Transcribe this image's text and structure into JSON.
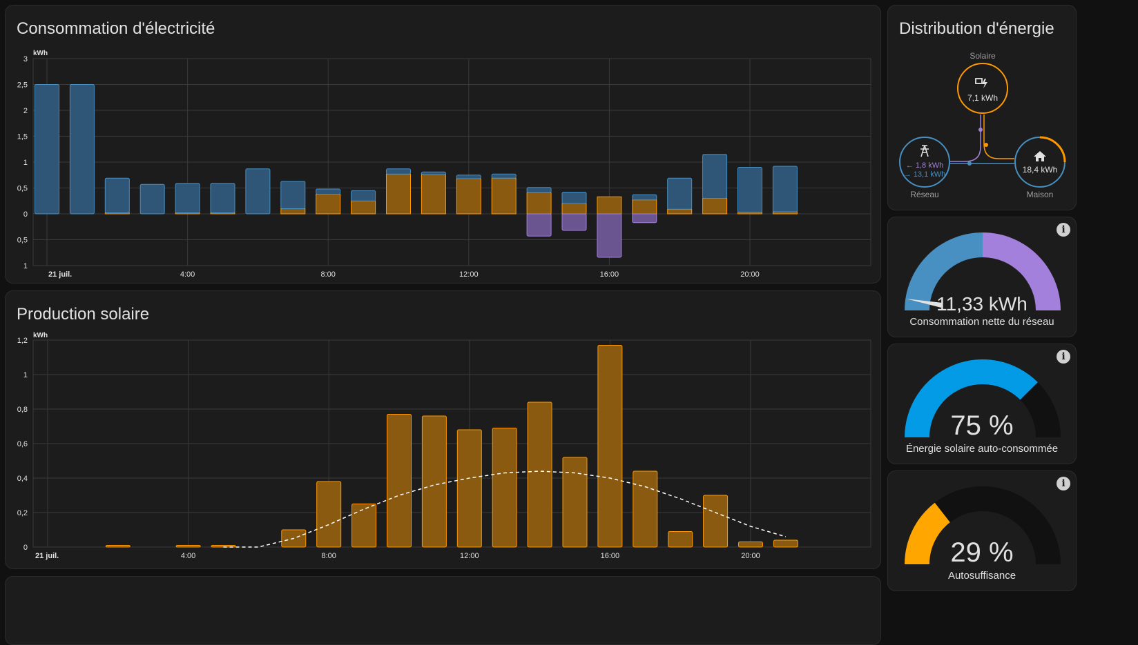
{
  "consumption": {
    "title": "Consommation d'électricité",
    "unit": "kWh",
    "yticks_pos": [
      "3",
      "2,5",
      "2",
      "1,5",
      "1",
      "0,5",
      "0"
    ],
    "yticks_neg": [
      "0,5",
      "1"
    ],
    "xticks": [
      "21 juil.",
      "4:00",
      "8:00",
      "12:00",
      "16:00",
      "20:00"
    ]
  },
  "solar": {
    "title": "Production solaire",
    "unit": "kWh",
    "yticks": [
      "1,2",
      "1",
      "0,8",
      "0,6",
      "0,4",
      "0,2",
      "0"
    ],
    "xticks": [
      "21 juil.",
      "4:00",
      "8:00",
      "12:00",
      "16:00",
      "20:00"
    ]
  },
  "distribution": {
    "title": "Distribution d'énergie",
    "solar_label": "Solaire",
    "solar_value": "7,1 kWh",
    "grid_label": "Réseau",
    "grid_out": "← 1,8 kWh",
    "grid_in": "→ 13,1 kWh",
    "home_label": "Maison",
    "home_value": "18,4 kWh"
  },
  "gauge_net": {
    "value": "11,33 kWh",
    "label": "Consommation nette du réseau"
  },
  "gauge_self": {
    "value": "75 %",
    "label": "Énergie solaire auto-consommée",
    "fraction": 0.75
  },
  "gauge_auto": {
    "value": "29 %",
    "label": "Autosuffisance",
    "fraction": 0.29
  },
  "colors": {
    "grid": "#488fc2",
    "solar": "#ff9800",
    "return": "#a280db",
    "gauge_blue": "#039be5",
    "gauge_orange": "#ffa600"
  },
  "chart_data": [
    {
      "type": "bar",
      "title": "Consommation d'électricité",
      "ylabel": "kWh",
      "ylim": [
        -1,
        3
      ],
      "hours": [
        0,
        1,
        2,
        3,
        4,
        5,
        6,
        7,
        8,
        9,
        10,
        11,
        12,
        13,
        14,
        15,
        16,
        17,
        18,
        19,
        20,
        21
      ],
      "series": [
        {
          "name": "grid",
          "values": [
            2.5,
            2.5,
            0.67,
            0.57,
            0.57,
            0.57,
            0.87,
            0.53,
            0.1,
            0.2,
            0.1,
            0.05,
            0.07,
            0.08,
            0.1,
            0.22,
            0,
            0.1,
            0.6,
            0.85,
            0.87,
            0.88
          ]
        },
        {
          "name": "solar",
          "values": [
            0,
            0,
            0.02,
            0,
            0.02,
            0.02,
            0,
            0.1,
            0.38,
            0.25,
            0.77,
            0.76,
            0.68,
            0.69,
            0.41,
            0.2,
            0.33,
            0.27,
            0.09,
            0.3,
            0.03,
            0.04
          ]
        },
        {
          "name": "return",
          "values": [
            0,
            0,
            0,
            0,
            0,
            0,
            0,
            0,
            0,
            0,
            0,
            0,
            0,
            0,
            -0.43,
            -0.32,
            -0.84,
            -0.17,
            0,
            0,
            0,
            0
          ]
        }
      ]
    },
    {
      "type": "bar",
      "title": "Production solaire",
      "ylabel": "kWh",
      "ylim": [
        0,
        1.2
      ],
      "hours": [
        0,
        1,
        2,
        3,
        4,
        5,
        6,
        7,
        8,
        9,
        10,
        11,
        12,
        13,
        14,
        15,
        16,
        17,
        18,
        19,
        20,
        21
      ],
      "values": [
        0,
        0,
        0.01,
        0,
        0.01,
        0.01,
        0,
        0.1,
        0.38,
        0.25,
        0.77,
        0.76,
        0.68,
        0.69,
        0.84,
        0.52,
        1.17,
        0.44,
        0.09,
        0.3,
        0.03,
        0.04
      ],
      "forecast": [
        [
          5,
          0
        ],
        [
          5.5,
          0
        ],
        [
          6,
          0
        ],
        [
          7,
          0.05
        ],
        [
          8,
          0.13
        ],
        [
          9,
          0.22
        ],
        [
          10,
          0.3
        ],
        [
          11,
          0.36
        ],
        [
          12,
          0.4
        ],
        [
          13,
          0.43
        ],
        [
          14,
          0.44
        ],
        [
          15,
          0.43
        ],
        [
          16,
          0.4
        ],
        [
          17,
          0.35
        ],
        [
          18,
          0.28
        ],
        [
          19,
          0.2
        ],
        [
          20,
          0.12
        ],
        [
          21,
          0.06
        ]
      ]
    }
  ]
}
